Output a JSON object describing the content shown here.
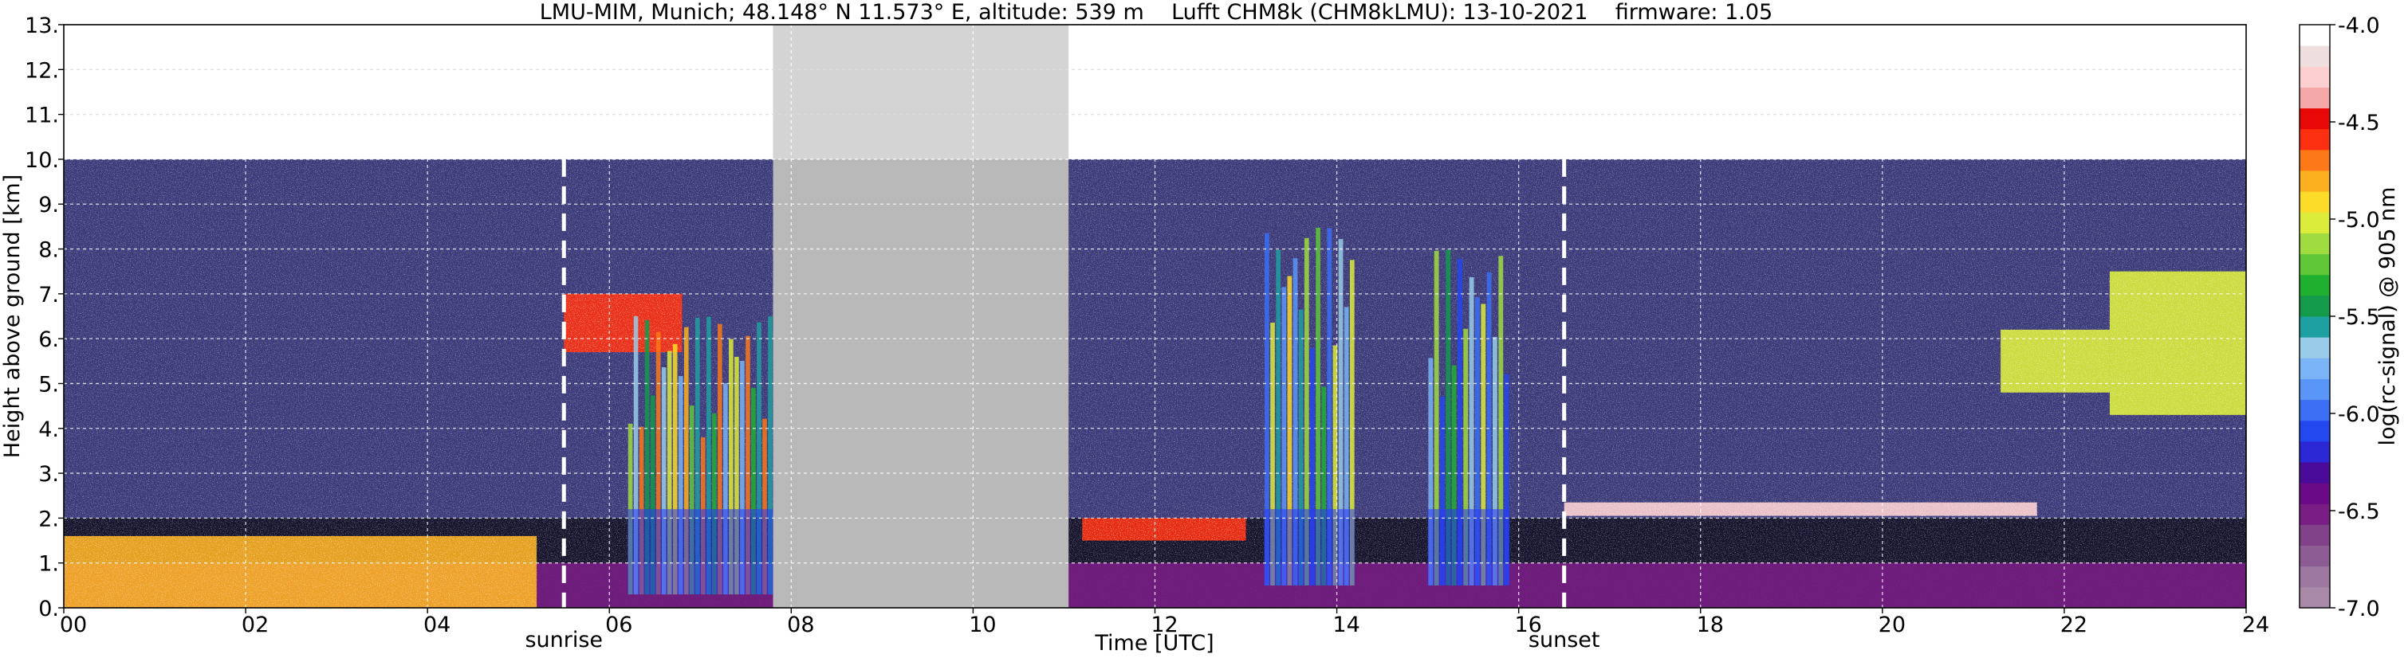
{
  "chart_data": {
    "type": "heatmap",
    "title": "LMU-MIM, Munich; 48.148° N 11.573° E, altitude: 539 m    Lufft CHM8k (CHM8kLMU): 13-10-2021    firmware: 1.05",
    "xlabel": "Time [UTC]",
    "ylabel": "Height above ground [km]",
    "xlim": [
      0,
      24
    ],
    "ylim": [
      0,
      13
    ],
    "x_ticks": [
      {
        "value": 0,
        "label": "00"
      },
      {
        "value": 2,
        "label": "02"
      },
      {
        "value": 4,
        "label": "04"
      },
      {
        "value": 6,
        "label": "06"
      },
      {
        "value": 8,
        "label": "08"
      },
      {
        "value": 10,
        "label": "10"
      },
      {
        "value": 12,
        "label": "12"
      },
      {
        "value": 14,
        "label": "14"
      },
      {
        "value": 16,
        "label": "16"
      },
      {
        "value": 18,
        "label": "18"
      },
      {
        "value": 20,
        "label": "20"
      },
      {
        "value": 22,
        "label": "22"
      },
      {
        "value": 24,
        "label": "24"
      }
    ],
    "y_ticks": [
      {
        "value": 0,
        "label": "0."
      },
      {
        "value": 1,
        "label": "1."
      },
      {
        "value": 2,
        "label": "2."
      },
      {
        "value": 3,
        "label": "3."
      },
      {
        "value": 4,
        "label": "4."
      },
      {
        "value": 5,
        "label": "5."
      },
      {
        "value": 6,
        "label": "6."
      },
      {
        "value": 7,
        "label": "7."
      },
      {
        "value": 8,
        "label": "8."
      },
      {
        "value": 9,
        "label": "9."
      },
      {
        "value": 10,
        "label": "10."
      },
      {
        "value": 11,
        "label": "11."
      },
      {
        "value": 12,
        "label": "12."
      },
      {
        "value": 13,
        "label": "13."
      }
    ],
    "grid": true,
    "data_max_height_km": 10,
    "missing_data_intervals": [
      [
        7.8,
        11.05
      ]
    ],
    "annotations": [
      {
        "label": "sunrise",
        "time": 5.5
      },
      {
        "label": "sunset",
        "time": 16.5
      }
    ],
    "colorbar": {
      "label": "log(rc-signal) @ 905 nm",
      "range": [
        -7.0,
        -4.0
      ],
      "ticks": [
        {
          "value": -4.0,
          "label": "-4.0"
        },
        {
          "value": -4.5,
          "label": "-4.5"
        },
        {
          "value": -5.0,
          "label": "-5.0"
        },
        {
          "value": -5.5,
          "label": "-5.5"
        },
        {
          "value": -6.0,
          "label": "-6.0"
        },
        {
          "value": -6.5,
          "label": "-6.5"
        },
        {
          "value": -7.0,
          "label": "-7.0"
        }
      ],
      "colors_bottom_to_top": [
        "#a88aa8",
        "#9c78a0",
        "#8e5c94",
        "#82428a",
        "#781e84",
        "#6a0a86",
        "#4a0a9a",
        "#2c28d6",
        "#2448f0",
        "#3c6ef4",
        "#5a96f8",
        "#7ab4f6",
        "#98cce8",
        "#1fa0a0",
        "#139a4a",
        "#20b030",
        "#60c838",
        "#a0dc40",
        "#dcec3a",
        "#fcdc28",
        "#fcb020",
        "#fc7818",
        "#fc3010",
        "#e80808",
        "#f4a8a8",
        "#fcd0d0",
        "#eedede",
        "#ffffff"
      ]
    },
    "features": [
      {
        "name": "boundary layer aerosol",
        "time": [
          0,
          24
        ],
        "height_km": [
          0,
          1.0
        ],
        "log_signal": -6.5
      },
      {
        "name": "low cloud fragments",
        "time": [
          0,
          5.2
        ],
        "height_km": [
          0,
          1.6
        ],
        "log_signal": -4.8
      },
      {
        "name": "mid-level cloud",
        "time": [
          5.5,
          6.8
        ],
        "height_km": [
          5.7,
          7.0
        ],
        "log_signal": -4.6
      },
      {
        "name": "precipitation streaks",
        "time": [
          6.2,
          7.8
        ],
        "height_km": [
          0.3,
          6.5
        ],
        "log_signal": -5.2
      },
      {
        "name": "cloud base layer",
        "time": [
          11.2,
          13.0
        ],
        "height_km": [
          1.5,
          2.0
        ],
        "log_signal": -4.6
      },
      {
        "name": "precipitation streaks",
        "time": [
          13.2,
          14.2
        ],
        "height_km": [
          0.5,
          8.5
        ],
        "log_signal": -5.5
      },
      {
        "name": "precipitation streaks",
        "time": [
          15.0,
          15.9
        ],
        "height_km": [
          0.5,
          8.0
        ],
        "log_signal": -5.6
      },
      {
        "name": "cloud top layer",
        "time": [
          16.5,
          21.7
        ],
        "height_km": [
          2.05,
          2.35
        ],
        "log_signal": -4.3
      },
      {
        "name": "high cloud",
        "time": [
          21.3,
          22.5
        ],
        "height_km": [
          4.8,
          6.2
        ],
        "log_signal": -5.0
      },
      {
        "name": "high cloud",
        "time": [
          22.5,
          24
        ],
        "height_km": [
          4.3,
          7.5
        ],
        "log_signal": -5.0
      }
    ]
  }
}
